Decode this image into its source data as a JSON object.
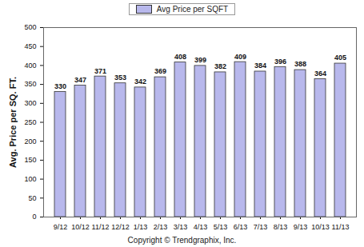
{
  "chart_data": {
    "type": "bar",
    "y_label": "Avg. Price per SQ. FT.",
    "caption": "Copyright © Trendgraphix, Inc.",
    "categories": [
      "9/12",
      "10/12",
      "11/12",
      "12/12",
      "1/13",
      "2/13",
      "3/13",
      "4/13",
      "5/13",
      "6/13",
      "7/13",
      "8/13",
      "9/13",
      "10/13",
      "11/13"
    ],
    "series": [
      {
        "name": "Avg Price per SQFT",
        "color": "#b8b8ec",
        "values": [
          330,
          347,
          371,
          353,
          342,
          369,
          408,
          399,
          382,
          409,
          384,
          396,
          388,
          364,
          405
        ]
      }
    ],
    "ylim": [
      0,
      500
    ],
    "yticks": [
      0,
      50,
      100,
      150,
      200,
      250,
      300,
      350,
      400,
      450,
      500
    ],
    "grid": false,
    "legend": "top",
    "data_labels": true
  }
}
